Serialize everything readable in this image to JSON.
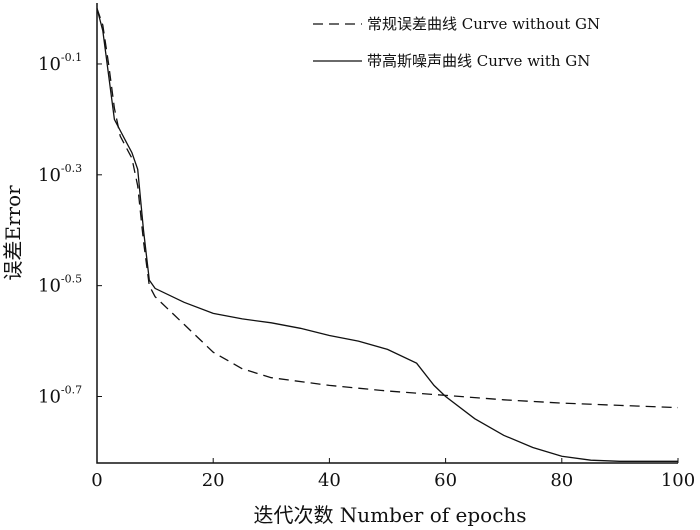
{
  "chart_data": {
    "type": "line",
    "xlabel": "迭代次数 Number of epochs",
    "ylabel": "误差Error",
    "xlim": [
      0,
      100
    ],
    "ylim": [
      -0.82,
      0.01
    ],
    "y_scale": "log10",
    "grid": false,
    "legend_position": "top-right",
    "x_ticks": [
      0,
      20,
      40,
      60,
      80,
      100
    ],
    "x_tick_labels": [
      "0",
      "20",
      "40",
      "60",
      "80",
      "100"
    ],
    "y_ticks": [
      -0.1,
      -0.3,
      -0.5,
      -0.7
    ],
    "y_tick_labels": [
      {
        "base": "10",
        "exp": "-0.1"
      },
      {
        "base": "10",
        "exp": "-0.3"
      },
      {
        "base": "10",
        "exp": "-0.5"
      },
      {
        "base": "10",
        "exp": "-0.7"
      }
    ],
    "series": [
      {
        "name": "常规误差曲线 Curve without GN",
        "style": "dashed",
        "color": "#111111",
        "x": [
          0,
          1,
          2,
          3,
          4,
          5,
          6,
          7,
          8,
          9,
          10,
          12,
          15,
          20,
          25,
          30,
          40,
          50,
          60,
          70,
          80,
          90,
          100
        ],
        "y": [
          0.0,
          -0.03,
          -0.1,
          -0.18,
          -0.23,
          -0.25,
          -0.27,
          -0.32,
          -0.42,
          -0.5,
          -0.52,
          -0.54,
          -0.57,
          -0.62,
          -0.65,
          -0.666,
          -0.68,
          -0.69,
          -0.698,
          -0.706,
          -0.712,
          -0.716,
          -0.72
        ]
      },
      {
        "name": "带高斯噪声曲线 Curve with GN",
        "style": "solid",
        "color": "#111111",
        "x": [
          0,
          1,
          2,
          3,
          4,
          5,
          6,
          7,
          8,
          9,
          10,
          15,
          20,
          25,
          30,
          35,
          40,
          45,
          50,
          55,
          58,
          60,
          65,
          70,
          75,
          80,
          85,
          90,
          95,
          100
        ],
        "y": [
          0.0,
          -0.04,
          -0.12,
          -0.2,
          -0.22,
          -0.24,
          -0.26,
          -0.29,
          -0.4,
          -0.49,
          -0.505,
          -0.53,
          -0.55,
          -0.56,
          -0.567,
          -0.577,
          -0.59,
          -0.6,
          -0.615,
          -0.64,
          -0.68,
          -0.7,
          -0.74,
          -0.77,
          -0.792,
          -0.808,
          -0.815,
          -0.817,
          -0.817,
          -0.817
        ]
      }
    ]
  }
}
